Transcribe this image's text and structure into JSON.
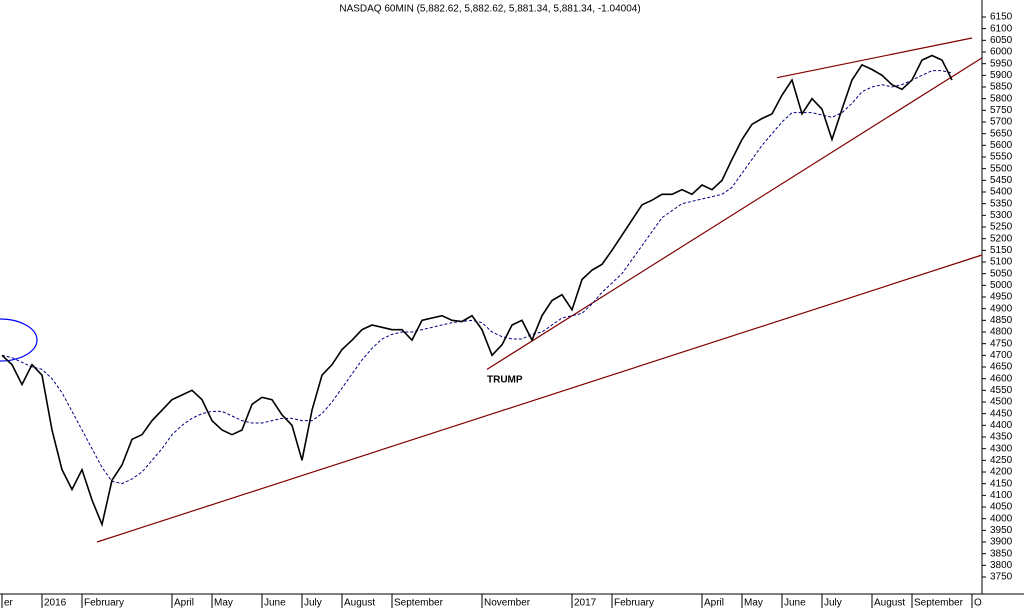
{
  "chart_data": {
    "type": "line",
    "title": "NASDAQ 60MIN (5,882.62, 5,882.62, 5,881.34, 5,881.34, -1.04004)",
    "annotations": [
      "TRUMP"
    ],
    "categories": [
      "er",
      null,
      null,
      null,
      "2016",
      null,
      null,
      null,
      "February",
      null,
      null,
      null,
      null,
      null,
      null,
      null,
      null,
      "April",
      null,
      null,
      null,
      "May",
      null,
      null,
      null,
      null,
      "June",
      null,
      null,
      null,
      "July",
      null,
      null,
      null,
      "August",
      null,
      null,
      null,
      null,
      "September",
      null,
      null,
      null,
      null,
      null,
      null,
      null,
      null,
      "November",
      null,
      null,
      null,
      null,
      null,
      null,
      null,
      null,
      "2017",
      null,
      null,
      null,
      "February",
      null,
      null,
      null,
      null,
      null,
      null,
      null,
      null,
      "April",
      null,
      null,
      null,
      "May",
      null,
      null,
      null,
      "June",
      null,
      null,
      null,
      "July",
      null,
      null,
      null,
      null,
      "August",
      null,
      null,
      null,
      "September",
      null,
      null,
      null,
      null,
      null,
      "O"
    ],
    "series": [
      {
        "color": "#000000",
        "values": [
          4700,
          4660,
          4575,
          4660,
          4615,
          4380,
          4210,
          4125,
          4210,
          4080,
          3975,
          4165,
          4230,
          4340,
          4360,
          4420,
          4465,
          4510,
          4530,
          4550,
          4510,
          4420,
          4380,
          4360,
          4380,
          4490,
          4520,
          4510,
          4445,
          4400,
          4250,
          4465,
          4615,
          4660,
          4725,
          4765,
          4810,
          4830,
          4820,
          4810,
          4810,
          4765,
          4850,
          4860,
          4870,
          4850,
          4845,
          4870,
          4810,
          4700,
          4745,
          4830,
          4850,
          4765,
          4870,
          4935,
          4960,
          4895,
          5025,
          5065,
          5090,
          5150,
          5215,
          5280,
          5345,
          5365,
          5390,
          5390,
          5410,
          5390,
          5430,
          5410,
          5450,
          5540,
          5625,
          5690,
          5715,
          5735,
          5815,
          5880,
          5735,
          5800,
          5755,
          5625,
          5755,
          5880,
          5945,
          5925,
          5900,
          5860,
          5840,
          5880,
          5965,
          5985,
          5965,
          5880,
          null,
          null
        ]
      },
      {
        "color": "#000080",
        "values": [
          4700,
          4690,
          4670,
          4650,
          4640,
          4600,
          4540,
          4460,
          4380,
          4300,
          4220,
          4160,
          4150,
          4170,
          4200,
          4250,
          4300,
          4360,
          4400,
          4430,
          4450,
          4460,
          4460,
          4440,
          4420,
          4410,
          4410,
          4420,
          4430,
          4430,
          4420,
          4420,
          4450,
          4500,
          4560,
          4620,
          4680,
          4730,
          4770,
          4790,
          4800,
          4800,
          4810,
          4820,
          4830,
          4840,
          4845,
          4850,
          4840,
          4800,
          4780,
          4770,
          4770,
          4790,
          4800,
          4830,
          4860,
          4870,
          4880,
          4920,
          4970,
          5010,
          5050,
          5110,
          5170,
          5230,
          5290,
          5320,
          5350,
          5360,
          5370,
          5380,
          5390,
          5420,
          5480,
          5540,
          5600,
          5650,
          5700,
          5740,
          5740,
          5740,
          5730,
          5720,
          5740,
          5780,
          5830,
          5850,
          5860,
          5850,
          5860,
          5880,
          5900,
          5920,
          5920,
          5910,
          null,
          null
        ]
      }
    ],
    "trendlines": [
      {
        "color": "#800000",
        "x": [
          9.5,
          98
        ],
        "values": [
          3900,
          5130
        ]
      },
      {
        "color": "#800000",
        "x": [
          48.5,
          98
        ],
        "values": [
          4640,
          5975
        ]
      },
      {
        "color": "#800000",
        "x": [
          77.5,
          97
        ],
        "values": [
          5890,
          6060
        ]
      }
    ],
    "ylim": [
      3750,
      6150
    ],
    "yticks": [
      3750,
      3800,
      3850,
      3900,
      3950,
      4000,
      4050,
      4100,
      4150,
      4200,
      4250,
      4300,
      4350,
      4400,
      4450,
      4500,
      4550,
      4600,
      4650,
      4700,
      4750,
      4800,
      4850,
      4900,
      4950,
      5000,
      5050,
      5100,
      5150,
      5200,
      5250,
      5300,
      5350,
      5400,
      5450,
      5500,
      5550,
      5600,
      5650,
      5700,
      5750,
      5800,
      5850,
      5900,
      5950,
      6000,
      6050,
      6100,
      6150
    ]
  }
}
